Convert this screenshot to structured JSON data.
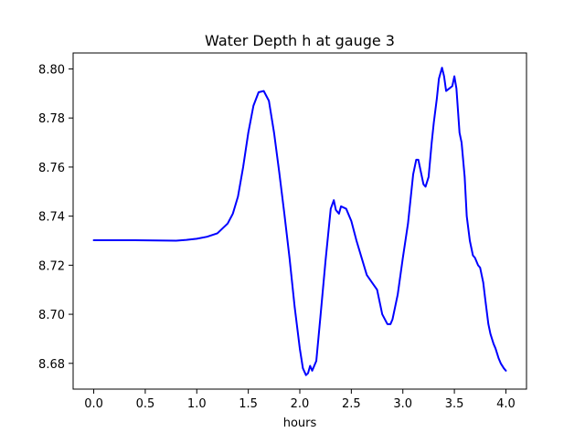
{
  "chart_data": {
    "type": "line",
    "title": "Water Depth h at gauge 3",
    "xlabel": "hours",
    "ylabel": "",
    "xlim": [
      -0.2,
      4.2
    ],
    "ylim": [
      8.6695,
      8.8065
    ],
    "x_ticks": [
      0.0,
      0.5,
      1.0,
      1.5,
      2.0,
      2.5,
      3.0,
      3.5,
      4.0
    ],
    "x_tick_labels": [
      "0.0",
      "0.5",
      "1.0",
      "1.5",
      "2.0",
      "2.5",
      "3.0",
      "3.5",
      "4.0"
    ],
    "y_ticks": [
      8.68,
      8.7,
      8.72,
      8.74,
      8.76,
      8.78,
      8.8
    ],
    "y_tick_labels": [
      "8.68",
      "8.70",
      "8.72",
      "8.74",
      "8.76",
      "8.78",
      "8.80"
    ],
    "grid": false,
    "legend": null,
    "series": [
      {
        "color": "#0000ff",
        "x": [
          0.0,
          0.2,
          0.4,
          0.6,
          0.8,
          0.9,
          1.0,
          1.1,
          1.2,
          1.3,
          1.35,
          1.4,
          1.45,
          1.5,
          1.55,
          1.6,
          1.65,
          1.7,
          1.75,
          1.8,
          1.85,
          1.9,
          1.95,
          2.0,
          2.03,
          2.06,
          2.08,
          2.1,
          2.12,
          2.14,
          2.16,
          2.2,
          2.25,
          2.3,
          2.33,
          2.35,
          2.38,
          2.4,
          2.45,
          2.5,
          2.55,
          2.6,
          2.65,
          2.7,
          2.75,
          2.8,
          2.85,
          2.88,
          2.9,
          2.95,
          3.0,
          3.05,
          3.1,
          3.13,
          3.15,
          3.18,
          3.2,
          3.22,
          3.25,
          3.28,
          3.3,
          3.33,
          3.35,
          3.38,
          3.4,
          3.42,
          3.45,
          3.48,
          3.5,
          3.52,
          3.55,
          3.57,
          3.6,
          3.62,
          3.65,
          3.68,
          3.7,
          3.73,
          3.75,
          3.78,
          3.8,
          3.83,
          3.85,
          3.88,
          3.9,
          3.93,
          3.95,
          3.98,
          4.0
        ],
        "y": [
          8.7302,
          8.7302,
          8.7302,
          8.7301,
          8.73,
          8.7303,
          8.7308,
          8.7316,
          8.733,
          8.737,
          8.741,
          8.748,
          8.76,
          8.774,
          8.785,
          8.7905,
          8.791,
          8.787,
          8.774,
          8.758,
          8.741,
          8.723,
          8.703,
          8.686,
          8.678,
          8.6752,
          8.676,
          8.679,
          8.677,
          8.679,
          8.681,
          8.699,
          8.722,
          8.743,
          8.7465,
          8.7425,
          8.741,
          8.744,
          8.743,
          8.738,
          8.73,
          8.723,
          8.716,
          8.713,
          8.71,
          8.7,
          8.696,
          8.696,
          8.698,
          8.708,
          8.723,
          8.737,
          8.757,
          8.763,
          8.763,
          8.757,
          8.753,
          8.752,
          8.756,
          8.77,
          8.778,
          8.788,
          8.796,
          8.8005,
          8.797,
          8.791,
          8.792,
          8.793,
          8.797,
          8.792,
          8.774,
          8.77,
          8.756,
          8.74,
          8.73,
          8.724,
          8.723,
          8.72,
          8.719,
          8.713,
          8.706,
          8.696,
          8.692,
          8.688,
          8.686,
          8.682,
          8.68,
          8.678,
          8.677
        ]
      }
    ]
  }
}
